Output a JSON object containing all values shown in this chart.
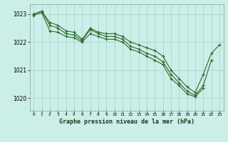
{
  "title": "Graphe pression niveau de la mer (hPa)",
  "background_color": "#cceee8",
  "grid_color": "#aad4ce",
  "line_color": "#2d6a2d",
  "marker_color": "#2d6a2d",
  "ylim": [
    1019.55,
    1023.35
  ],
  "xlim": [
    -0.5,
    23.5
  ],
  "yticks": [
    1020,
    1021,
    1022,
    1023
  ],
  "xticks": [
    0,
    1,
    2,
    3,
    4,
    5,
    6,
    7,
    8,
    9,
    10,
    11,
    12,
    13,
    14,
    15,
    16,
    17,
    18,
    19,
    20,
    21,
    22,
    23
  ],
  "series": [
    [
      1023.0,
      1023.1,
      1022.7,
      1022.6,
      1022.4,
      1022.35,
      1022.1,
      1022.5,
      1022.35,
      1022.3,
      1022.3,
      1022.2,
      1022.0,
      1021.9,
      1021.8,
      1021.7,
      1021.5,
      1021.0,
      1020.7,
      1020.4,
      1020.2,
      1020.85,
      1021.6,
      1021.9
    ],
    [
      1023.0,
      1023.1,
      1022.6,
      1022.5,
      1022.3,
      1022.25,
      1022.05,
      1022.45,
      1022.3,
      1022.2,
      1022.2,
      1022.1,
      1021.85,
      1021.75,
      1021.6,
      1021.5,
      1021.3,
      1020.85,
      1020.55,
      1020.25,
      1020.1,
      1020.45,
      1021.35,
      null
    ],
    [
      1022.95,
      1023.05,
      1022.4,
      1022.35,
      1022.2,
      1022.15,
      1022.0,
      1022.3,
      1022.2,
      1022.1,
      1022.1,
      1022.0,
      1021.75,
      1021.65,
      1021.5,
      1021.35,
      1021.2,
      1020.7,
      1020.45,
      1020.15,
      1020.05,
      1020.35,
      null,
      null
    ]
  ],
  "title_fontsize": 6.0,
  "ylabel_fontsize": 5.5,
  "xlabel_fontsize": 4.2
}
